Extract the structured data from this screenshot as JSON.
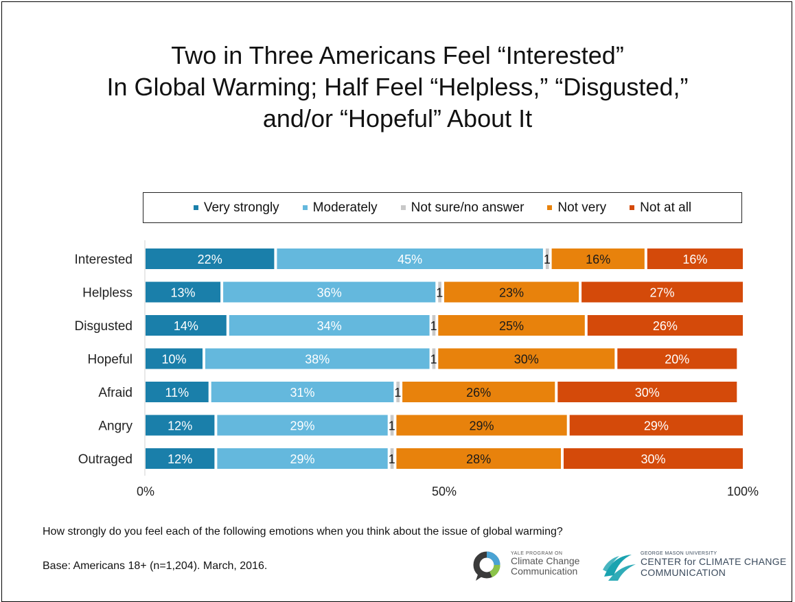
{
  "title": {
    "line1": "Two in Three Americans Feel “Interested”",
    "line2": "In Global Warming; Half Feel “Helpless,” “Disgusted,”",
    "line3": "and/or “Hopeful” About It"
  },
  "legend": [
    {
      "label": "Very strongly",
      "color": "#1a7faa"
    },
    {
      "label": "Moderately",
      "color": "#64b8dd"
    },
    {
      "label": "Not sure/no answer",
      "color": "#c8c8c8"
    },
    {
      "label": "Not very",
      "color": "#e8820c"
    },
    {
      "label": "Not at all",
      "color": "#d44a0a"
    }
  ],
  "chart_data": {
    "type": "bar",
    "orientation": "horizontal-stacked-100",
    "categories": [
      "Interested",
      "Helpless",
      "Disgusted",
      "Hopeful",
      "Afraid",
      "Angry",
      "Outraged"
    ],
    "series": [
      {
        "name": "Very strongly",
        "color": "#1a7faa",
        "values": [
          22,
          13,
          14,
          10,
          11,
          12,
          12
        ],
        "labels": [
          "22%",
          "13%",
          "14%",
          "10%",
          "11%",
          "12%",
          "12%"
        ]
      },
      {
        "name": "Moderately",
        "color": "#64b8dd",
        "values": [
          45,
          36,
          34,
          38,
          31,
          29,
          29
        ],
        "labels": [
          "45%",
          "36%",
          "34%",
          "38%",
          "31%",
          "29%",
          "29%"
        ]
      },
      {
        "name": "Not sure/no answer",
        "color": "#c8c8c8",
        "values": [
          1,
          1,
          1,
          1,
          1,
          1,
          1
        ],
        "labels": [
          "1",
          "1",
          "1",
          "1",
          "1",
          "1",
          "1"
        ]
      },
      {
        "name": "Not very",
        "color": "#e8820c",
        "values": [
          16,
          23,
          25,
          30,
          26,
          29,
          28
        ],
        "labels": [
          "16%",
          "23%",
          "25%",
          "30%",
          "26%",
          "29%",
          "28%"
        ]
      },
      {
        "name": "Not at all",
        "color": "#d44a0a",
        "values": [
          16,
          27,
          26,
          20,
          30,
          29,
          30
        ],
        "labels": [
          "16%",
          "27%",
          "26%",
          "20%",
          "30%",
          "29%",
          "30%"
        ]
      }
    ],
    "xticks": [
      "0%",
      "50%",
      "100%"
    ],
    "xlim": [
      0,
      100
    ],
    "grid": false,
    "legend_position": "top"
  },
  "footer": {
    "question": "How strongly do you feel each of the following emotions when you think about the issue of global warming?",
    "base": "Base: Americans 18+ (n=1,204). March, 2016."
  },
  "logos": {
    "yale_small": "YALE PROGRAM ON",
    "yale_line1": "Climate Change",
    "yale_line2": "Communication",
    "gmu_small": "GEORGE MASON UNIVERSITY",
    "gmu_line1": "CENTER for CLIMATE CHANGE",
    "gmu_line2": "COMMUNICATION"
  }
}
